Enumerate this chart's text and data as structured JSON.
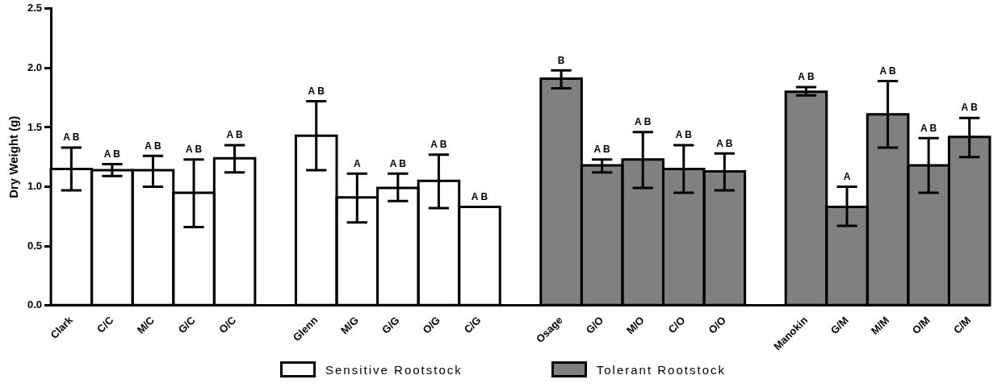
{
  "chart_data": {
    "type": "bar",
    "ylabel": "Dry Weight (g)",
    "categories": [
      "Clark",
      "C/C",
      "M/C",
      "G/C",
      "O/C",
      null,
      "Glenn",
      "M/G",
      "G/G",
      "O/G",
      "C/G",
      null,
      "Osage",
      "G/O",
      "M/O",
      "C/O",
      "O/O",
      null,
      "Manokin",
      "G/M",
      "M/M",
      "O/M",
      "C/M"
    ],
    "series": [
      {
        "name": "Sensitive Rootstock",
        "color": "#ffffff",
        "values": [
          1.15,
          1.14,
          1.14,
          0.95,
          1.24,
          null,
          1.43,
          0.91,
          0.99,
          1.05,
          0.83,
          null,
          null,
          null,
          null,
          null,
          null,
          null,
          null,
          null,
          null,
          null,
          null
        ],
        "errors": [
          [
            0.97,
            1.33
          ],
          [
            1.09,
            1.19
          ],
          [
            1.0,
            1.26
          ],
          [
            0.66,
            1.23
          ],
          [
            1.12,
            1.35
          ],
          null,
          [
            1.14,
            1.72
          ],
          [
            0.7,
            1.11
          ],
          [
            0.88,
            1.11
          ],
          [
            0.82,
            1.27
          ],
          null,
          null,
          null,
          null,
          null,
          null,
          null,
          null,
          null,
          null,
          null,
          null,
          null
        ]
      },
      {
        "name": "Tolerant Rootstock",
        "color": "#808080",
        "values": [
          null,
          null,
          null,
          null,
          null,
          null,
          null,
          null,
          null,
          null,
          null,
          null,
          1.91,
          1.18,
          1.23,
          1.15,
          1.13,
          null,
          1.8,
          0.83,
          1.61,
          1.18,
          1.42
        ],
        "errors": [
          null,
          null,
          null,
          null,
          null,
          null,
          null,
          null,
          null,
          null,
          null,
          null,
          [
            1.83,
            1.98
          ],
          [
            1.12,
            1.23
          ],
          [
            0.99,
            1.46
          ],
          [
            0.95,
            1.35
          ],
          [
            0.97,
            1.28
          ],
          null,
          [
            1.77,
            1.84
          ],
          [
            0.67,
            1.0
          ],
          [
            1.33,
            1.89
          ],
          [
            0.95,
            1.41
          ],
          [
            1.25,
            1.58
          ]
        ]
      }
    ],
    "ylim": [
      0,
      2.5
    ],
    "yticks": [
      {
        "value": 0,
        "label": "0.0"
      },
      {
        "value": 0.5,
        "label": "0.5"
      },
      {
        "value": 1,
        "label": "1.0"
      },
      {
        "value": 1.5,
        "label": "1.5"
      },
      {
        "value": 2,
        "label": "2.0"
      },
      {
        "value": 2.5,
        "label": "2.5"
      }
    ],
    "grid": false,
    "legend": "bottom",
    "annotations": [
      {
        "text": "A B",
        "x": "Clark",
        "y": 1.33
      },
      {
        "text": "A B",
        "x": "C/C",
        "y": 1.19
      },
      {
        "text": "A B",
        "x": "M/C",
        "y": 1.26
      },
      {
        "text": "A B",
        "x": "G/C",
        "y": 1.23
      },
      {
        "text": "A B",
        "x": "O/C",
        "y": 1.35
      },
      {
        "text": "A B",
        "x": "Glenn",
        "y": 1.72
      },
      {
        "text": "A",
        "x": "M/G",
        "y": 1.11
      },
      {
        "text": "A B",
        "x": "G/G",
        "y": 1.11
      },
      {
        "text": "A B",
        "x": "O/G",
        "y": 1.27
      },
      {
        "text": "A B",
        "x": "C/G",
        "y": 0.83
      },
      {
        "text": "B",
        "x": "Osage",
        "y": 1.98
      },
      {
        "text": "A B",
        "x": "G/O",
        "y": 1.23
      },
      {
        "text": "A B",
        "x": "M/O",
        "y": 1.46
      },
      {
        "text": "A B",
        "x": "C/O",
        "y": 1.35
      },
      {
        "text": "A B",
        "x": "O/O",
        "y": 1.28
      },
      {
        "text": "A B",
        "x": "Manokin",
        "y": 1.84
      },
      {
        "text": "A",
        "x": "G/M",
        "y": 1.0
      },
      {
        "text": "A B",
        "x": "M/M",
        "y": 1.89
      },
      {
        "text": "A B",
        "x": "O/M",
        "y": 1.41
      },
      {
        "text": "A B",
        "x": "C/M",
        "y": 1.58
      }
    ]
  }
}
